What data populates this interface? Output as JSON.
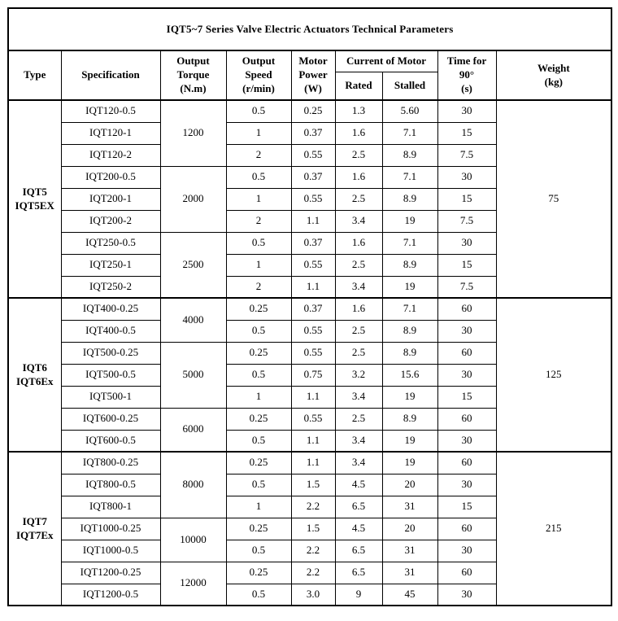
{
  "title": "IQT5~7 Series Valve Electric Actuators Technical Parameters",
  "header": {
    "type": "Type",
    "specification": "Specification",
    "output_torque": "Output\nTorque\n(N.m)",
    "output_speed": "Output\nSpeed\n(r/min)",
    "motor_power": "Motor\nPower\n(W)",
    "current_of_motor": "Current of Motor",
    "rated": "Rated",
    "stalled": "Stalled",
    "time_for_90": "Time for\n90°\n(s)",
    "weight": "Weight\n(kg)"
  },
  "groups": [
    {
      "type": "IQT5\nIQT5EX",
      "weight": "75",
      "torque_groups": [
        {
          "torque": "1200",
          "rows": [
            {
              "spec": "IQT120-0.5",
              "speed": "0.5",
              "power": "0.25",
              "rated": "1.3",
              "stalled": "5.60",
              "time": "30"
            },
            {
              "spec": "IQT120-1",
              "speed": "1",
              "power": "0.37",
              "rated": "1.6",
              "stalled": "7.1",
              "time": "15"
            },
            {
              "spec": "IQT120-2",
              "speed": "2",
              "power": "0.55",
              "rated": "2.5",
              "stalled": "8.9",
              "time": "7.5"
            }
          ]
        },
        {
          "torque": "2000",
          "rows": [
            {
              "spec": "IQT200-0.5",
              "speed": "0.5",
              "power": "0.37",
              "rated": "1.6",
              "stalled": "7.1",
              "time": "30"
            },
            {
              "spec": "IQT200-1",
              "speed": "1",
              "power": "0.55",
              "rated": "2.5",
              "stalled": "8.9",
              "time": "15"
            },
            {
              "spec": "IQT200-2",
              "speed": "2",
              "power": "1.1",
              "rated": "3.4",
              "stalled": "19",
              "time": "7.5"
            }
          ]
        },
        {
          "torque": "2500",
          "rows": [
            {
              "spec": "IQT250-0.5",
              "speed": "0.5",
              "power": "0.37",
              "rated": "1.6",
              "stalled": "7.1",
              "time": "30"
            },
            {
              "spec": "IQT250-1",
              "speed": "1",
              "power": "0.55",
              "rated": "2.5",
              "stalled": "8.9",
              "time": "15"
            },
            {
              "spec": "IQT250-2",
              "speed": "2",
              "power": "1.1",
              "rated": "3.4",
              "stalled": "19",
              "time": "7.5"
            }
          ]
        }
      ]
    },
    {
      "type": "IQT6\nIQT6Ex",
      "weight": "125",
      "torque_groups": [
        {
          "torque": "4000",
          "rows": [
            {
              "spec": "IQT400-0.25",
              "speed": "0.25",
              "power": "0.37",
              "rated": "1.6",
              "stalled": "7.1",
              "time": "60"
            },
            {
              "spec": "IQT400-0.5",
              "speed": "0.5",
              "power": "0.55",
              "rated": "2.5",
              "stalled": "8.9",
              "time": "30"
            }
          ]
        },
        {
          "torque": "5000",
          "rows": [
            {
              "spec": "IQT500-0.25",
              "speed": "0.25",
              "power": "0.55",
              "rated": "2.5",
              "stalled": "8.9",
              "time": "60"
            },
            {
              "spec": "IQT500-0.5",
              "speed": "0.5",
              "power": "0.75",
              "rated": "3.2",
              "stalled": "15.6",
              "time": "30"
            },
            {
              "spec": "IQT500-1",
              "speed": "1",
              "power": "1.1",
              "rated": "3.4",
              "stalled": "19",
              "time": "15"
            }
          ]
        },
        {
          "torque": "6000",
          "rows": [
            {
              "spec": "IQT600-0.25",
              "speed": "0.25",
              "power": "0.55",
              "rated": "2.5",
              "stalled": "8.9",
              "time": "60"
            },
            {
              "spec": "IQT600-0.5",
              "speed": "0.5",
              "power": "1.1",
              "rated": "3.4",
              "stalled": "19",
              "time": "30"
            }
          ]
        }
      ]
    },
    {
      "type": "IQT7\nIQT7Ex",
      "weight": "215",
      "torque_groups": [
        {
          "torque": "8000",
          "rows": [
            {
              "spec": "IQT800-0.25",
              "speed": "0.25",
              "power": "1.1",
              "rated": "3.4",
              "stalled": "19",
              "time": "60"
            },
            {
              "spec": "IQT800-0.5",
              "speed": "0.5",
              "power": "1.5",
              "rated": "4.5",
              "stalled": "20",
              "time": "30"
            },
            {
              "spec": "IQT800-1",
              "speed": "1",
              "power": "2.2",
              "rated": "6.5",
              "stalled": "31",
              "time": "15"
            }
          ]
        },
        {
          "torque": "10000",
          "rows": [
            {
              "spec": "IQT1000-0.25",
              "speed": "0.25",
              "power": "1.5",
              "rated": "4.5",
              "stalled": "20",
              "time": "60"
            },
            {
              "spec": "IQT1000-0.5",
              "speed": "0.5",
              "power": "2.2",
              "rated": "6.5",
              "stalled": "31",
              "time": "30"
            }
          ]
        },
        {
          "torque": "12000",
          "rows": [
            {
              "spec": "IQT1200-0.25",
              "speed": "0.25",
              "power": "2.2",
              "rated": "6.5",
              "stalled": "31",
              "time": "60"
            },
            {
              "spec": "IQT1200-0.5",
              "speed": "0.5",
              "power": "3.0",
              "rated": "9",
              "stalled": "45",
              "time": "30"
            }
          ]
        }
      ]
    }
  ]
}
